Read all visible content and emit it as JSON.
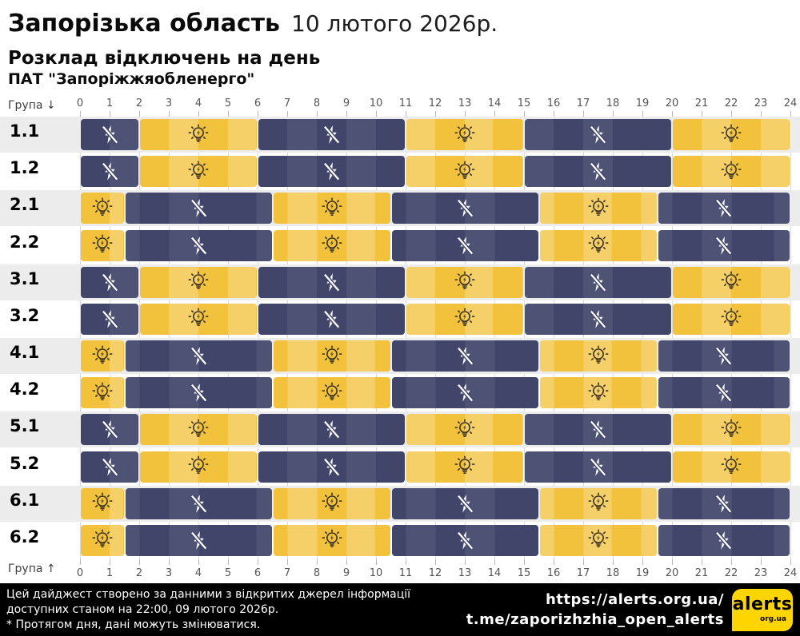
{
  "header": {
    "region": "Запорізька область",
    "date": "10 лютого 2026р.",
    "subtitle": "Розклад відключень на день",
    "company": "ПАТ \"Запоріжжяобленерго\""
  },
  "axis": {
    "group_label_top": "Група ↓",
    "group_label_bottom": "Група ↑",
    "hours": [
      0,
      1,
      2,
      3,
      4,
      5,
      6,
      7,
      8,
      9,
      10,
      11,
      12,
      13,
      14,
      15,
      16,
      17,
      18,
      19,
      20,
      21,
      22,
      23,
      24
    ]
  },
  "chart_data": {
    "type": "gantt-schedule",
    "title": "Розклад відключень на день",
    "x_range": [
      0,
      24
    ],
    "x_unit": "hour",
    "states": {
      "off": {
        "meaning": "power outage",
        "icon": "crossed-lightning",
        "color": "#41456a"
      },
      "on": {
        "meaning": "power available",
        "icon": "lightbulb",
        "color": "#f2c23d"
      }
    },
    "groups": [
      {
        "label": "1.1",
        "segments": [
          {
            "start": 0,
            "end": 2,
            "state": "off"
          },
          {
            "start": 2,
            "end": 6,
            "state": "on"
          },
          {
            "start": 6,
            "end": 11,
            "state": "off"
          },
          {
            "start": 11,
            "end": 15,
            "state": "on"
          },
          {
            "start": 15,
            "end": 20,
            "state": "off"
          },
          {
            "start": 20,
            "end": 24,
            "state": "on"
          }
        ]
      },
      {
        "label": "1.2",
        "segments": [
          {
            "start": 0,
            "end": 2,
            "state": "off"
          },
          {
            "start": 2,
            "end": 6,
            "state": "on"
          },
          {
            "start": 6,
            "end": 11,
            "state": "off"
          },
          {
            "start": 11,
            "end": 15,
            "state": "on"
          },
          {
            "start": 15,
            "end": 20,
            "state": "off"
          },
          {
            "start": 20,
            "end": 24,
            "state": "on"
          }
        ]
      },
      {
        "label": "2.1",
        "segments": [
          {
            "start": 0,
            "end": 1.5,
            "state": "on"
          },
          {
            "start": 1.5,
            "end": 6.5,
            "state": "off"
          },
          {
            "start": 6.5,
            "end": 10.5,
            "state": "on"
          },
          {
            "start": 10.5,
            "end": 15.5,
            "state": "off"
          },
          {
            "start": 15.5,
            "end": 19.5,
            "state": "on"
          },
          {
            "start": 19.5,
            "end": 24,
            "state": "off"
          }
        ]
      },
      {
        "label": "2.2",
        "segments": [
          {
            "start": 0,
            "end": 1.5,
            "state": "on"
          },
          {
            "start": 1.5,
            "end": 6.5,
            "state": "off"
          },
          {
            "start": 6.5,
            "end": 10.5,
            "state": "on"
          },
          {
            "start": 10.5,
            "end": 15.5,
            "state": "off"
          },
          {
            "start": 15.5,
            "end": 19.5,
            "state": "on"
          },
          {
            "start": 19.5,
            "end": 24,
            "state": "off"
          }
        ]
      },
      {
        "label": "3.1",
        "segments": [
          {
            "start": 0,
            "end": 2,
            "state": "off"
          },
          {
            "start": 2,
            "end": 6,
            "state": "on"
          },
          {
            "start": 6,
            "end": 11,
            "state": "off"
          },
          {
            "start": 11,
            "end": 15,
            "state": "on"
          },
          {
            "start": 15,
            "end": 20,
            "state": "off"
          },
          {
            "start": 20,
            "end": 24,
            "state": "on"
          }
        ]
      },
      {
        "label": "3.2",
        "segments": [
          {
            "start": 0,
            "end": 2,
            "state": "off"
          },
          {
            "start": 2,
            "end": 6,
            "state": "on"
          },
          {
            "start": 6,
            "end": 11,
            "state": "off"
          },
          {
            "start": 11,
            "end": 15,
            "state": "on"
          },
          {
            "start": 15,
            "end": 20,
            "state": "off"
          },
          {
            "start": 20,
            "end": 24,
            "state": "on"
          }
        ]
      },
      {
        "label": "4.1",
        "segments": [
          {
            "start": 0,
            "end": 1.5,
            "state": "on"
          },
          {
            "start": 1.5,
            "end": 6.5,
            "state": "off"
          },
          {
            "start": 6.5,
            "end": 10.5,
            "state": "on"
          },
          {
            "start": 10.5,
            "end": 15.5,
            "state": "off"
          },
          {
            "start": 15.5,
            "end": 19.5,
            "state": "on"
          },
          {
            "start": 19.5,
            "end": 24,
            "state": "off"
          }
        ]
      },
      {
        "label": "4.2",
        "segments": [
          {
            "start": 0,
            "end": 1.5,
            "state": "on"
          },
          {
            "start": 1.5,
            "end": 6.5,
            "state": "off"
          },
          {
            "start": 6.5,
            "end": 10.5,
            "state": "on"
          },
          {
            "start": 10.5,
            "end": 15.5,
            "state": "off"
          },
          {
            "start": 15.5,
            "end": 19.5,
            "state": "on"
          },
          {
            "start": 19.5,
            "end": 24,
            "state": "off"
          }
        ]
      },
      {
        "label": "5.1",
        "segments": [
          {
            "start": 0,
            "end": 2,
            "state": "off"
          },
          {
            "start": 2,
            "end": 6,
            "state": "on"
          },
          {
            "start": 6,
            "end": 11,
            "state": "off"
          },
          {
            "start": 11,
            "end": 15,
            "state": "on"
          },
          {
            "start": 15,
            "end": 20,
            "state": "off"
          },
          {
            "start": 20,
            "end": 24,
            "state": "on"
          }
        ]
      },
      {
        "label": "5.2",
        "segments": [
          {
            "start": 0,
            "end": 2,
            "state": "off"
          },
          {
            "start": 2,
            "end": 6,
            "state": "on"
          },
          {
            "start": 6,
            "end": 11,
            "state": "off"
          },
          {
            "start": 11,
            "end": 15,
            "state": "on"
          },
          {
            "start": 15,
            "end": 20,
            "state": "off"
          },
          {
            "start": 20,
            "end": 24,
            "state": "on"
          }
        ]
      },
      {
        "label": "6.1",
        "segments": [
          {
            "start": 0,
            "end": 1.5,
            "state": "on"
          },
          {
            "start": 1.5,
            "end": 6.5,
            "state": "off"
          },
          {
            "start": 6.5,
            "end": 10.5,
            "state": "on"
          },
          {
            "start": 10.5,
            "end": 15.5,
            "state": "off"
          },
          {
            "start": 15.5,
            "end": 19.5,
            "state": "on"
          },
          {
            "start": 19.5,
            "end": 24,
            "state": "off"
          }
        ]
      },
      {
        "label": "6.2",
        "segments": [
          {
            "start": 0,
            "end": 1.5,
            "state": "on"
          },
          {
            "start": 1.5,
            "end": 6.5,
            "state": "off"
          },
          {
            "start": 6.5,
            "end": 10.5,
            "state": "on"
          },
          {
            "start": 10.5,
            "end": 15.5,
            "state": "off"
          },
          {
            "start": 15.5,
            "end": 19.5,
            "state": "on"
          },
          {
            "start": 19.5,
            "end": 24,
            "state": "off"
          }
        ]
      }
    ]
  },
  "colors": {
    "off_base": "#41456a",
    "on_base": "#f2c23d",
    "row_stripe": "#ececec",
    "gridline": "#dadada",
    "footer_bg": "#000000",
    "logo_yellow": "#ffd500",
    "bulb_stroke": "#3a3223"
  },
  "footer": {
    "note_lines": [
      "Цей дайджест створено за данними з відкритих джерел інформації",
      "доступних станом на 22:00, 09 лютого 2026р.",
      "* Протягом дня, дані можуть змінюватися."
    ],
    "links": [
      "https://alerts.org.ua/",
      "t.me/zaporizhzhia_open_alerts"
    ],
    "logo": {
      "text": "alerts",
      "sub": "org.ua"
    }
  }
}
